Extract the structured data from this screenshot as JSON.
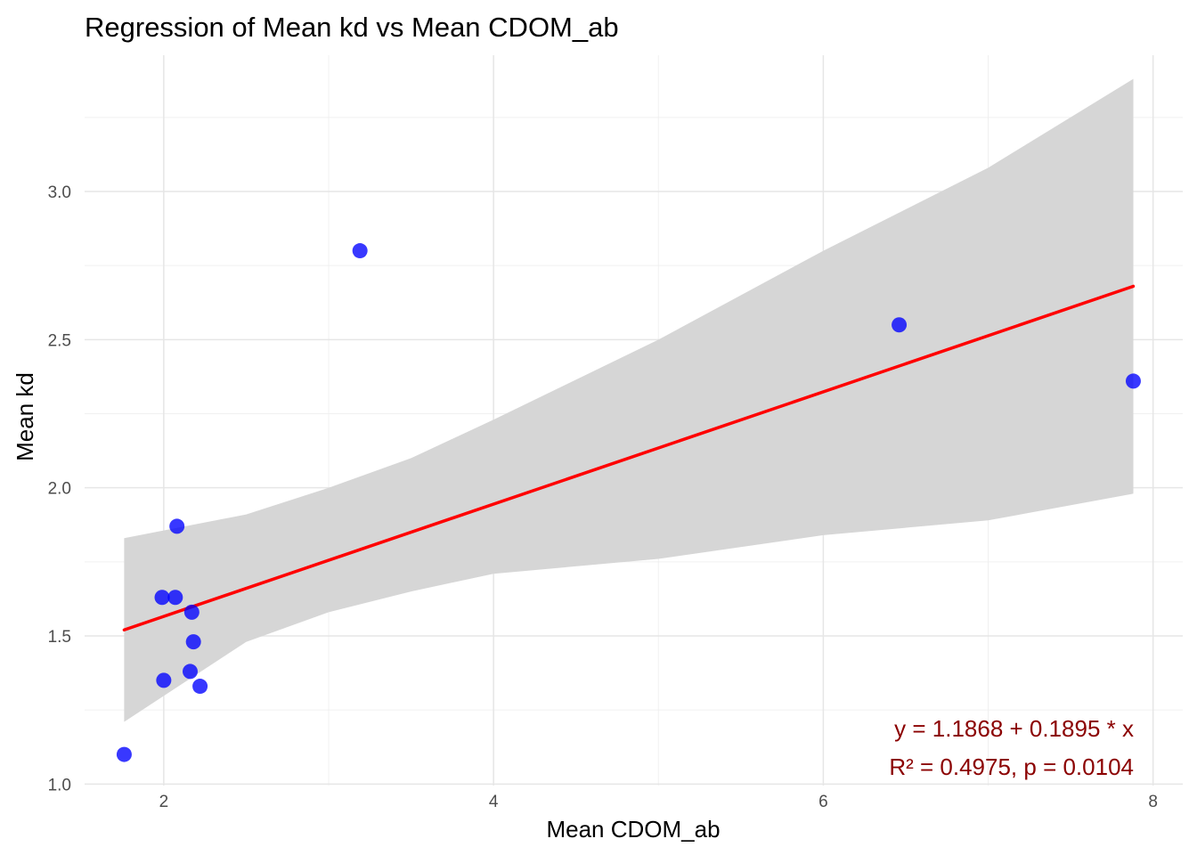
{
  "chart_data": {
    "type": "scatter",
    "title": "Regression of Mean kd vs Mean CDOM_ab",
    "xlabel": "Mean CDOM_ab",
    "ylabel": "Mean kd",
    "xlim": [
      1.52,
      8.18
    ],
    "ylim": [
      0.995,
      3.46
    ],
    "x_ticks": [
      2,
      4,
      6,
      8
    ],
    "x_tick_labels": [
      "2",
      "4",
      "6",
      "8"
    ],
    "y_ticks": [
      1.0,
      1.5,
      2.0,
      2.5,
      3.0
    ],
    "y_tick_labels": [
      "1.0",
      "1.5",
      "2.0",
      "2.5",
      "3.0"
    ],
    "grid": true,
    "point_color": "#0000ff",
    "points": [
      {
        "x": 1.76,
        "y": 1.1
      },
      {
        "x": 1.99,
        "y": 1.63
      },
      {
        "x": 2.0,
        "y": 1.35
      },
      {
        "x": 2.07,
        "y": 1.63
      },
      {
        "x": 2.08,
        "y": 1.87
      },
      {
        "x": 2.16,
        "y": 1.38
      },
      {
        "x": 2.17,
        "y": 1.58
      },
      {
        "x": 2.18,
        "y": 1.48
      },
      {
        "x": 2.22,
        "y": 1.33
      },
      {
        "x": 3.19,
        "y": 2.8
      },
      {
        "x": 6.46,
        "y": 2.55
      },
      {
        "x": 7.88,
        "y": 2.36
      }
    ],
    "regression": {
      "intercept": 1.1868,
      "slope": 0.1895,
      "x_range": [
        1.76,
        7.88
      ],
      "line_color": "#ff0000",
      "band_color": "#d6d6d6"
    },
    "confidence_band": [
      {
        "x": 1.76,
        "lower": 1.21,
        "upper": 1.83
      },
      {
        "x": 2.5,
        "lower": 1.48,
        "upper": 1.91
      },
      {
        "x": 3.0,
        "lower": 1.58,
        "upper": 2.0
      },
      {
        "x": 3.5,
        "lower": 1.65,
        "upper": 2.1
      },
      {
        "x": 4.0,
        "lower": 1.71,
        "upper": 2.23
      },
      {
        "x": 5.0,
        "lower": 1.76,
        "upper": 2.5
      },
      {
        "x": 6.0,
        "lower": 1.84,
        "upper": 2.8
      },
      {
        "x": 7.0,
        "lower": 1.89,
        "upper": 3.08
      },
      {
        "x": 7.88,
        "lower": 1.98,
        "upper": 3.38
      }
    ],
    "annotations": {
      "equation": "y = 1.1868 + 0.1895 * x",
      "stats": "R² = 0.4975, p = 0.0104",
      "color": "#8b0000"
    }
  }
}
